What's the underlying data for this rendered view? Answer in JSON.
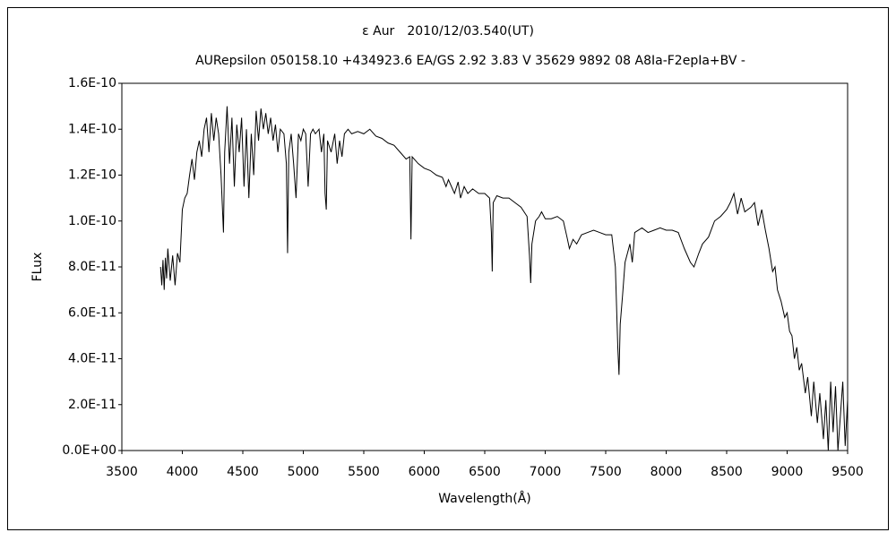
{
  "chart_data": {
    "type": "line",
    "title": "ε Aur　2010/12/03.540(UT)",
    "subtitle": "AURepsilon 050158.10 +434923.6 EA/GS 2.92 3.83 V 35629 9892 08 A8Ia-F2epIa+BV -",
    "x_label": "Wavelength(Å)",
    "y_label": "FLux",
    "color": "#000000",
    "grid": false,
    "xlim": [
      3500,
      9500
    ],
    "xticks": [
      3500,
      4000,
      4500,
      5000,
      5500,
      6000,
      6500,
      7000,
      7500,
      8000,
      8500,
      9000,
      9500
    ],
    "ylim": [
      0,
      1.6e-10
    ],
    "yticks": [
      {
        "value": 0,
        "label": "0.0E+00"
      },
      {
        "value": 2e-11,
        "label": "2.0E-11"
      },
      {
        "value": 4e-11,
        "label": "4.0E-11"
      },
      {
        "value": 6e-11,
        "label": "6.0E-11"
      },
      {
        "value": 8e-11,
        "label": "8.0E-11"
      },
      {
        "value": 1e-10,
        "label": "1.0E-10"
      },
      {
        "value": 1.2e-10,
        "label": "1.2E-10"
      },
      {
        "value": 1.4e-10,
        "label": "1.4E-10"
      },
      {
        "value": 1.6e-10,
        "label": "1.6E-10"
      }
    ],
    "x": [
      3820,
      3830,
      3840,
      3850,
      3860,
      3870,
      3880,
      3900,
      3920,
      3940,
      3960,
      3980,
      4000,
      4020,
      4040,
      4060,
      4080,
      4100,
      4120,
      4140,
      4160,
      4180,
      4200,
      4220,
      4240,
      4260,
      4280,
      4300,
      4320,
      4340,
      4350,
      4370,
      4390,
      4410,
      4430,
      4450,
      4470,
      4490,
      4510,
      4530,
      4550,
      4570,
      4590,
      4610,
      4630,
      4650,
      4670,
      4690,
      4710,
      4730,
      4750,
      4770,
      4790,
      4810,
      4840,
      4860,
      4870,
      4880,
      4900,
      4920,
      4940,
      4960,
      4980,
      5000,
      5020,
      5040,
      5060,
      5080,
      5100,
      5130,
      5150,
      5170,
      5180,
      5190,
      5200,
      5230,
      5260,
      5280,
      5300,
      5320,
      5340,
      5370,
      5400,
      5450,
      5500,
      5550,
      5600,
      5650,
      5700,
      5750,
      5800,
      5850,
      5880,
      5890,
      5900,
      5950,
      6000,
      6050,
      6100,
      6150,
      6180,
      6200,
      6250,
      6280,
      6300,
      6330,
      6360,
      6400,
      6450,
      6500,
      6540,
      6555,
      6562,
      6570,
      6600,
      6650,
      6700,
      6750,
      6800,
      6850,
      6870,
      6880,
      6890,
      6920,
      6950,
      6970,
      7000,
      7050,
      7100,
      7150,
      7180,
      7200,
      7230,
      7260,
      7300,
      7350,
      7400,
      7450,
      7500,
      7550,
      7580,
      7600,
      7610,
      7620,
      7640,
      7660,
      7700,
      7720,
      7740,
      7800,
      7850,
      7900,
      7950,
      8000,
      8050,
      8100,
      8150,
      8200,
      8230,
      8270,
      8300,
      8350,
      8400,
      8450,
      8500,
      8530,
      8560,
      8590,
      8620,
      8650,
      8700,
      8730,
      8760,
      8790,
      8820,
      8850,
      8880,
      8900,
      8920,
      8950,
      8980,
      9000,
      9020,
      9040,
      9060,
      9080,
      9100,
      9120,
      9150,
      9170,
      9200,
      9220,
      9250,
      9270,
      9300,
      9320,
      9340,
      9360,
      9380,
      9400,
      9420,
      9440,
      9460,
      9480,
      9500
    ],
    "values": [
      8e-11,
      7.2e-11,
      8.3e-11,
      7e-11,
      8.4e-11,
      7.5e-11,
      8.8e-11,
      7.4e-11,
      8.5e-11,
      7.2e-11,
      8.6e-11,
      8.2e-11,
      1.05e-10,
      1.1e-10,
      1.12e-10,
      1.2e-10,
      1.27e-10,
      1.18e-10,
      1.3e-10,
      1.35e-10,
      1.28e-10,
      1.4e-10,
      1.45e-10,
      1.3e-10,
      1.47e-10,
      1.35e-10,
      1.45e-10,
      1.38e-10,
      1.2e-10,
      9.5e-11,
      1.3e-10,
      1.5e-10,
      1.25e-10,
      1.45e-10,
      1.15e-10,
      1.42e-10,
      1.3e-10,
      1.45e-10,
      1.15e-10,
      1.4e-10,
      1.1e-10,
      1.38e-10,
      1.2e-10,
      1.48e-10,
      1.35e-10,
      1.49e-10,
      1.4e-10,
      1.47e-10,
      1.38e-10,
      1.45e-10,
      1.35e-10,
      1.42e-10,
      1.3e-10,
      1.4e-10,
      1.38e-10,
      1.25e-10,
      8.6e-11,
      1.3e-10,
      1.38e-10,
      1.25e-10,
      1.1e-10,
      1.38e-10,
      1.35e-10,
      1.4e-10,
      1.38e-10,
      1.15e-10,
      1.38e-10,
      1.4e-10,
      1.38e-10,
      1.4e-10,
      1.3e-10,
      1.38e-10,
      1.12e-10,
      1.05e-10,
      1.35e-10,
      1.3e-10,
      1.38e-10,
      1.25e-10,
      1.35e-10,
      1.28e-10,
      1.38e-10,
      1.4e-10,
      1.38e-10,
      1.39e-10,
      1.38e-10,
      1.4e-10,
      1.37e-10,
      1.36e-10,
      1.34e-10,
      1.33e-10,
      1.3e-10,
      1.27e-10,
      1.28e-10,
      9.2e-11,
      1.28e-10,
      1.25e-10,
      1.23e-10,
      1.22e-10,
      1.2e-10,
      1.19e-10,
      1.15e-10,
      1.18e-10,
      1.12e-10,
      1.17e-10,
      1.1e-10,
      1.15e-10,
      1.12e-10,
      1.14e-10,
      1.12e-10,
      1.12e-10,
      1.1e-10,
      9.5e-11,
      7.8e-11,
      1.08e-10,
      1.11e-10,
      1.1e-10,
      1.1e-10,
      1.08e-10,
      1.06e-10,
      1.02e-10,
      8.5e-11,
      7.3e-11,
      9e-11,
      1e-10,
      1.02e-10,
      1.04e-10,
      1.01e-10,
      1.01e-10,
      1.02e-10,
      1e-10,
      9.3e-11,
      8.8e-11,
      9.2e-11,
      9e-11,
      9.4e-11,
      9.5e-11,
      9.6e-11,
      9.5e-11,
      9.4e-11,
      9.4e-11,
      8e-11,
      4.5e-11,
      3.3e-11,
      5.5e-11,
      6.8e-11,
      8.2e-11,
      9e-11,
      8.2e-11,
      9.5e-11,
      9.7e-11,
      9.5e-11,
      9.6e-11,
      9.7e-11,
      9.6e-11,
      9.6e-11,
      9.5e-11,
      8.8e-11,
      8.2e-11,
      8e-11,
      8.6e-11,
      9e-11,
      9.3e-11,
      1e-10,
      1.02e-10,
      1.05e-10,
      1.08e-10,
      1.12e-10,
      1.03e-10,
      1.1e-10,
      1.04e-10,
      1.06e-10,
      1.08e-10,
      9.8e-11,
      1.05e-10,
      9.6e-11,
      8.8e-11,
      7.8e-11,
      8e-11,
      7e-11,
      6.5e-11,
      5.8e-11,
      6e-11,
      5.2e-11,
      5e-11,
      4e-11,
      4.5e-11,
      3.5e-11,
      3.8e-11,
      2.5e-11,
      3.2e-11,
      1.5e-11,
      3e-11,
      1.2e-11,
      2.5e-11,
      5e-12,
      2.2e-11,
      0,
      3e-11,
      8e-12,
      2.8e-11,
      0,
      1.5e-11,
      3e-11,
      2e-12,
      2.2e-11
    ]
  }
}
